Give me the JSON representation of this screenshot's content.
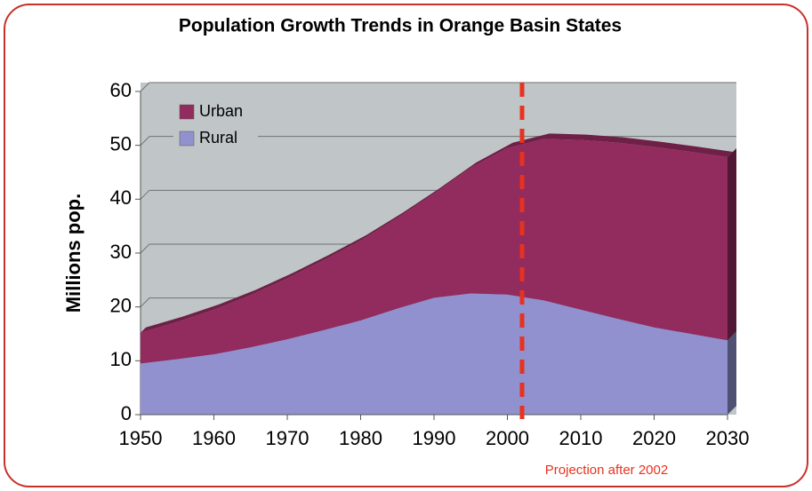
{
  "chart_data": {
    "type": "stacked_area",
    "title": "Population Growth Trends in Orange Basin States",
    "y_label": "Millions pop.",
    "x": [
      1950,
      1955,
      1960,
      1965,
      1970,
      1975,
      1980,
      1985,
      1990,
      1995,
      2000,
      2005,
      2010,
      2015,
      2020,
      2025,
      2030
    ],
    "series": [
      {
        "name": "Rural",
        "color": "#9191cf",
        "values": [
          9.5,
          10.3,
          11.2,
          12.5,
          14,
          15.7,
          17.5,
          19.7,
          21.7,
          22.5,
          22.3,
          21.2,
          19.5,
          17.8,
          16.2,
          15,
          13.8
        ]
      },
      {
        "name": "Urban",
        "color": "#922b5e",
        "values": [
          5.7,
          6.9,
          8.3,
          9.7,
          11.3,
          13,
          14.8,
          16.8,
          19.3,
          23.3,
          27.2,
          30,
          31.5,
          32.7,
          33.5,
          33.8,
          34
        ]
      }
    ],
    "xlim": [
      1950,
      2030
    ],
    "xticks": [
      1950,
      1960,
      1970,
      1980,
      1990,
      2000,
      2010,
      2020,
      2030
    ],
    "ylim": [
      0,
      60
    ],
    "yticks": [
      0,
      10,
      20,
      30,
      40,
      50,
      60
    ],
    "grid": true,
    "legend": "upper left",
    "annotation": {
      "x": 2002,
      "text": "Projection after 2002",
      "color": "#e8321e"
    }
  }
}
